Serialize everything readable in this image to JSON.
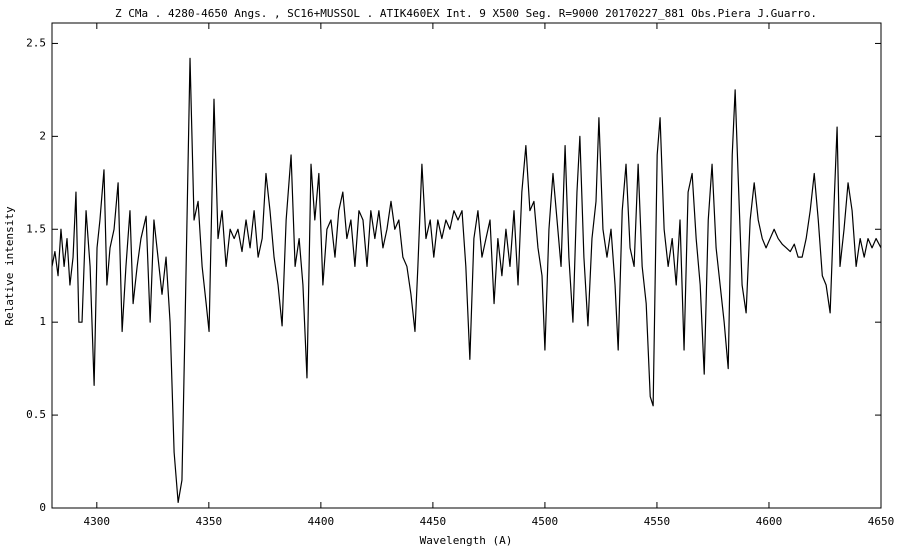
{
  "chart_data": {
    "type": "line",
    "title": "Z CMa . 4280-4650 Angs. , SC16+MUSSOL . ATIK460EX  Int. 9 X500 Seg.  R=9000   20170227_881  Obs.Piera  J.Guarro.",
    "x_label": "Wavelength (A)",
    "y_label": "Relative intensity",
    "xlim": [
      4280,
      4650
    ],
    "ylim": [
      0,
      2.61
    ],
    "xticks": [
      4300,
      4350,
      4400,
      4450,
      4500,
      4550,
      4600,
      4650
    ],
    "yticks": [
      0,
      0.5,
      1,
      1.5,
      2,
      2.5
    ],
    "color": "#000000",
    "x": [
      4280,
      4281.3,
      4282.7,
      4284,
      4285.4,
      4286.7,
      4288,
      4289.4,
      4290.7,
      4292,
      4293.4,
      4295.2,
      4297,
      4298.8,
      4300.1,
      4301.4,
      4303.2,
      4304.5,
      4305.9,
      4307.7,
      4309.5,
      4311.3,
      4313,
      4314.8,
      4316.2,
      4318,
      4319.7,
      4322,
      4323.8,
      4325.5,
      4327.3,
      4329.1,
      4330.9,
      4332.7,
      4334.5,
      4336.3,
      4338,
      4339.4,
      4341.6,
      4343.4,
      4345.2,
      4347,
      4348.8,
      4350.1,
      4352.3,
      4354.1,
      4355.9,
      4357.7,
      4359.5,
      4361.3,
      4363,
      4364.8,
      4366.6,
      4368.4,
      4370.2,
      4372,
      4373.8,
      4375.5,
      4377.3,
      4379.1,
      4380.9,
      4382.7,
      4384.5,
      4386.7,
      4388.5,
      4390.3,
      4392,
      4393.8,
      4395.6,
      4397.3,
      4399.1,
      4400.9,
      4402.7,
      4404.5,
      4406.3,
      4408,
      4409.8,
      4411.6,
      4413.4,
      4415.2,
      4417,
      4418.8,
      4420.6,
      4422.3,
      4424.1,
      4425.9,
      4427.7,
      4429.5,
      4431.3,
      4433,
      4434.8,
      4436.6,
      4438.4,
      4440.2,
      4442,
      4443.3,
      4445.1,
      4446.9,
      4448.8,
      4450.4,
      4452.2,
      4454,
      4455.8,
      4457.6,
      4459.4,
      4461.2,
      4463,
      4464.7,
      4466.5,
      4468.3,
      4470.1,
      4471.9,
      4473.7,
      4475.5,
      4477.3,
      4479,
      4480.8,
      4482.6,
      4484.4,
      4486.2,
      4488,
      4489.7,
      4491.5,
      4493.3,
      4495.1,
      4496.9,
      4498.7,
      4500,
      4501.8,
      4503.6,
      4505.4,
      4507.2,
      4509,
      4510.7,
      4512.5,
      4514.3,
      4515.6,
      4517.4,
      4519.2,
      4521,
      4522.8,
      4524.1,
      4525.9,
      4527.7,
      4529.5,
      4531.3,
      4532.7,
      4534.5,
      4536.2,
      4538,
      4539.8,
      4541.6,
      4543.4,
      4545.2,
      4547,
      4548.3,
      4550.1,
      4551.4,
      4553.2,
      4555,
      4556.8,
      4558.6,
      4560.3,
      4562.1,
      4563.9,
      4565.7,
      4567.5,
      4569.3,
      4571.1,
      4572.9,
      4574.6,
      4576.4,
      4578.2,
      4580,
      4581.8,
      4583.6,
      4584.9,
      4586.2,
      4588,
      4589.8,
      4591.6,
      4593.4,
      4595.2,
      4597,
      4598.7,
      4600.5,
      4602.3,
      4604.1,
      4605.9,
      4607.7,
      4609.5,
      4611.3,
      4613,
      4614.8,
      4616.6,
      4618.4,
      4620.2,
      4622,
      4623.8,
      4625.5,
      4627.3,
      4629.1,
      4630.4,
      4631.7,
      4633.5,
      4635.3,
      4637.1,
      4638.9,
      4640.7,
      4642.5,
      4644.2,
      4646,
      4647.8,
      4650
    ],
    "values": [
      1.3,
      1.38,
      1.25,
      1.5,
      1.3,
      1.45,
      1.2,
      1.35,
      1.7,
      1.0,
      1.0,
      1.6,
      1.3,
      0.66,
      1.4,
      1.55,
      1.82,
      1.2,
      1.4,
      1.5,
      1.75,
      0.95,
      1.3,
      1.6,
      1.1,
      1.3,
      1.45,
      1.57,
      1.0,
      1.55,
      1.35,
      1.15,
      1.35,
      1.0,
      0.3,
      0.03,
      0.15,
      1.0,
      2.42,
      1.55,
      1.65,
      1.3,
      1.1,
      0.95,
      2.2,
      1.45,
      1.6,
      1.3,
      1.5,
      1.45,
      1.5,
      1.38,
      1.55,
      1.4,
      1.6,
      1.35,
      1.45,
      1.8,
      1.6,
      1.35,
      1.2,
      0.98,
      1.55,
      1.9,
      1.3,
      1.45,
      1.2,
      0.7,
      1.85,
      1.55,
      1.8,
      1.2,
      1.5,
      1.55,
      1.35,
      1.6,
      1.7,
      1.45,
      1.55,
      1.3,
      1.6,
      1.55,
      1.3,
      1.6,
      1.45,
      1.6,
      1.4,
      1.5,
      1.65,
      1.5,
      1.55,
      1.35,
      1.3,
      1.15,
      0.95,
      1.3,
      1.85,
      1.45,
      1.55,
      1.35,
      1.55,
      1.45,
      1.55,
      1.5,
      1.6,
      1.55,
      1.6,
      1.3,
      0.8,
      1.45,
      1.6,
      1.35,
      1.45,
      1.55,
      1.1,
      1.45,
      1.25,
      1.5,
      1.3,
      1.6,
      1.2,
      1.7,
      1.95,
      1.6,
      1.65,
      1.4,
      1.25,
      0.85,
      1.5,
      1.8,
      1.55,
      1.3,
      1.95,
      1.35,
      1.0,
      1.7,
      2.0,
      1.35,
      0.98,
      1.45,
      1.65,
      2.1,
      1.5,
      1.35,
      1.5,
      1.2,
      0.85,
      1.6,
      1.85,
      1.4,
      1.3,
      1.85,
      1.3,
      1.1,
      0.6,
      0.55,
      1.9,
      2.1,
      1.5,
      1.3,
      1.45,
      1.2,
      1.55,
      0.85,
      1.7,
      1.8,
      1.45,
      1.2,
      0.72,
      1.55,
      1.85,
      1.4,
      1.2,
      1.0,
      0.75,
      1.9,
      2.25,
      1.8,
      1.2,
      1.05,
      1.55,
      1.75,
      1.55,
      1.45,
      1.4,
      1.45,
      1.5,
      1.45,
      1.42,
      1.4,
      1.38,
      1.42,
      1.35,
      1.35,
      1.45,
      1.6,
      1.8,
      1.55,
      1.25,
      1.2,
      1.05,
      1.65,
      2.05,
      1.3,
      1.5,
      1.75,
      1.6,
      1.3,
      1.45,
      1.35,
      1.45,
      1.4,
      1.45,
      1.4
    ]
  }
}
